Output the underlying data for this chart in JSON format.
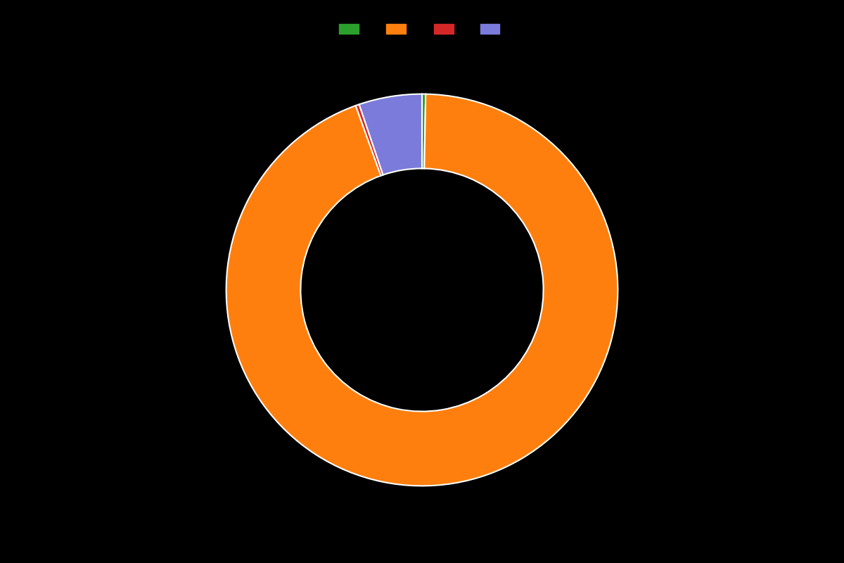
{
  "labels": [
    "Green",
    "Orange",
    "Red",
    "Blue"
  ],
  "values": [
    0.3,
    94.2,
    0.3,
    5.2
  ],
  "colors": [
    "#2ca02c",
    "#ff7f0e",
    "#d62728",
    "#7b7bdb"
  ],
  "background_color": "#000000",
  "wedge_edge_color": "#ffffff",
  "wedge_linewidth": 1.5,
  "donut_width": 0.38,
  "legend_ncol": 4,
  "figsize": [
    12,
    8
  ],
  "dpi": 100
}
